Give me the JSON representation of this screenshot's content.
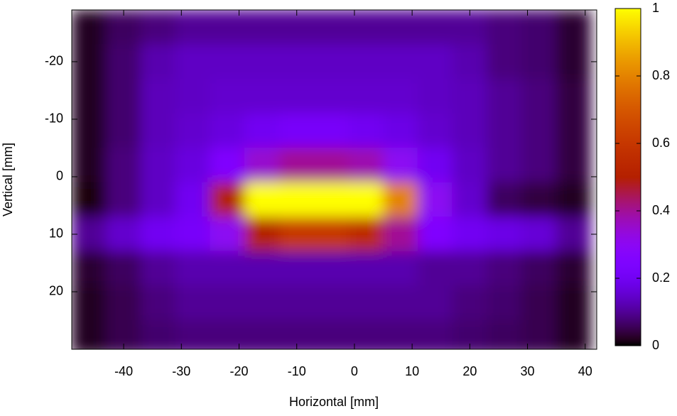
{
  "chart_data": {
    "type": "heatmap",
    "xlabel": "Horizontal [mm]",
    "ylabel": "Vertical [mm]",
    "x": [
      -46,
      -40,
      -34,
      -28,
      -22,
      -16,
      -10,
      -4,
      2,
      8,
      14,
      20,
      26,
      32,
      38
    ],
    "y": [
      -26,
      -20,
      -14,
      -8,
      -2,
      4,
      10,
      16,
      22,
      28
    ],
    "z": [
      [
        0.02,
        0.06,
        0.08,
        0.1,
        0.1,
        0.1,
        0.1,
        0.1,
        0.1,
        0.1,
        0.1,
        0.1,
        0.08,
        0.07,
        0.03
      ],
      [
        0.02,
        0.07,
        0.12,
        0.14,
        0.14,
        0.14,
        0.14,
        0.14,
        0.14,
        0.14,
        0.14,
        0.12,
        0.08,
        0.07,
        0.03
      ],
      [
        0.02,
        0.07,
        0.13,
        0.14,
        0.15,
        0.15,
        0.15,
        0.15,
        0.15,
        0.15,
        0.14,
        0.13,
        0.1,
        0.08,
        0.04
      ],
      [
        0.02,
        0.07,
        0.13,
        0.15,
        0.17,
        0.2,
        0.22,
        0.22,
        0.2,
        0.18,
        0.15,
        0.13,
        0.1,
        0.08,
        0.04
      ],
      [
        0.02,
        0.08,
        0.14,
        0.17,
        0.25,
        0.35,
        0.4,
        0.4,
        0.38,
        0.3,
        0.2,
        0.14,
        0.1,
        0.08,
        0.04
      ],
      [
        0.01,
        0.08,
        0.14,
        0.2,
        0.5,
        1,
        1,
        1,
        1,
        0.8,
        0.3,
        0.15,
        0.06,
        0.04,
        0.02
      ],
      [
        0.1,
        0.15,
        0.2,
        0.22,
        0.3,
        0.5,
        0.6,
        0.6,
        0.55,
        0.4,
        0.25,
        0.2,
        0.18,
        0.16,
        0.1
      ],
      [
        0.03,
        0.06,
        0.1,
        0.12,
        0.12,
        0.12,
        0.12,
        0.12,
        0.12,
        0.12,
        0.1,
        0.1,
        0.08,
        0.06,
        0.03
      ],
      [
        0.02,
        0.05,
        0.08,
        0.1,
        0.1,
        0.1,
        0.1,
        0.1,
        0.1,
        0.1,
        0.1,
        0.08,
        0.07,
        0.05,
        0.02
      ],
      [
        0.02,
        0.05,
        0.07,
        0.08,
        0.08,
        0.08,
        0.08,
        0.08,
        0.08,
        0.08,
        0.08,
        0.07,
        0.06,
        0.05,
        0.02
      ]
    ],
    "xlim": [
      -49,
      42
    ],
    "ylim": [
      30,
      -29
    ],
    "xticks": [
      -40,
      -30,
      -20,
      -10,
      0,
      10,
      20,
      30,
      40
    ],
    "yticks": [
      -20,
      -10,
      0,
      10,
      20
    ],
    "zlim": [
      0,
      1
    ],
    "zticks": [
      0,
      0.2,
      0.4,
      0.6,
      0.8,
      1
    ],
    "colormap": "gnuplot",
    "smooth": true
  }
}
